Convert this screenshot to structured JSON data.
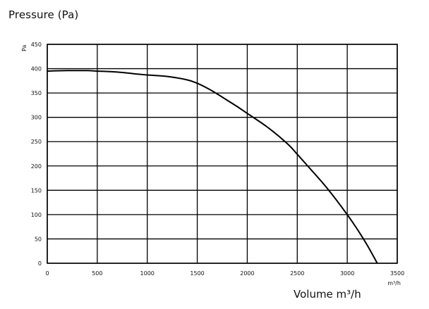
{
  "chart_data": {
    "type": "line",
    "title": "Pressure (Pa)",
    "xlabel": "Volume m³/h",
    "ylabel": "",
    "y_unit": "Pa",
    "x_unit": "m³/h",
    "xlim": [
      0,
      3500
    ],
    "ylim": [
      0,
      450
    ],
    "x_ticks": [
      0,
      500,
      1000,
      1500,
      2000,
      2500,
      3000,
      3500
    ],
    "y_ticks": [
      0,
      50,
      100,
      150,
      200,
      250,
      300,
      350,
      400,
      450
    ],
    "grid": true,
    "legend": "none",
    "series": [
      {
        "x": [
          0,
          200,
          400,
          500,
          700,
          900,
          1000,
          1200,
          1400,
          1500,
          1600,
          1700,
          1800,
          1900,
          2000,
          2200,
          2400,
          2500,
          2600,
          2800,
          3000,
          3100,
          3200,
          3300
        ],
        "y": [
          395,
          396,
          396,
          395,
          393,
          389,
          387,
          384,
          377,
          370,
          360,
          348,
          335,
          322,
          308,
          280,
          246,
          224,
          201,
          154,
          100,
          70,
          37,
          0
        ],
        "color": "#000000"
      }
    ]
  }
}
